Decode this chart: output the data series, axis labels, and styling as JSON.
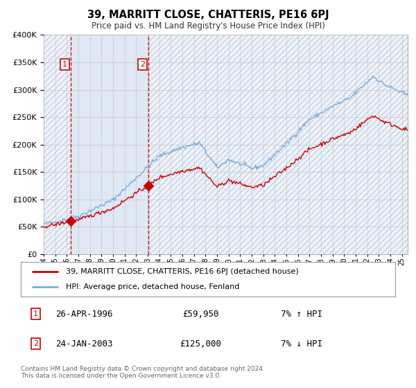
{
  "title": "39, MARRITT CLOSE, CHATTERIS, PE16 6PJ",
  "subtitle": "Price paid vs. HM Land Registry's House Price Index (HPI)",
  "legend_line1": "39, MARRITT CLOSE, CHATTERIS, PE16 6PJ (detached house)",
  "legend_line2": "HPI: Average price, detached house, Fenland",
  "sale1_date": "26-APR-1996",
  "sale1_price": "£59,950",
  "sale1_hpi": "7% ↑ HPI",
  "sale1_year": 1996.32,
  "sale1_value": 59950,
  "sale2_date": "24-JAN-2003",
  "sale2_price": "£125,000",
  "sale2_hpi": "7% ↓ HPI",
  "sale2_year": 2003.07,
  "sale2_value": 125000,
  "price_color": "#cc0000",
  "hpi_color": "#7aaedd",
  "background_color": "#ffffff",
  "plot_bg_color": "#eef2fa",
  "grid_color": "#c8c8c8",
  "shade_between_color": "#dae4f2",
  "hatch_color": "#aabbd0",
  "footer": "Contains HM Land Registry data © Crown copyright and database right 2024.\nThis data is licensed under the Open Government Licence v3.0.",
  "ylim": [
    0,
    400000
  ],
  "xlim_start": 1994.0,
  "xlim_end": 2025.5
}
